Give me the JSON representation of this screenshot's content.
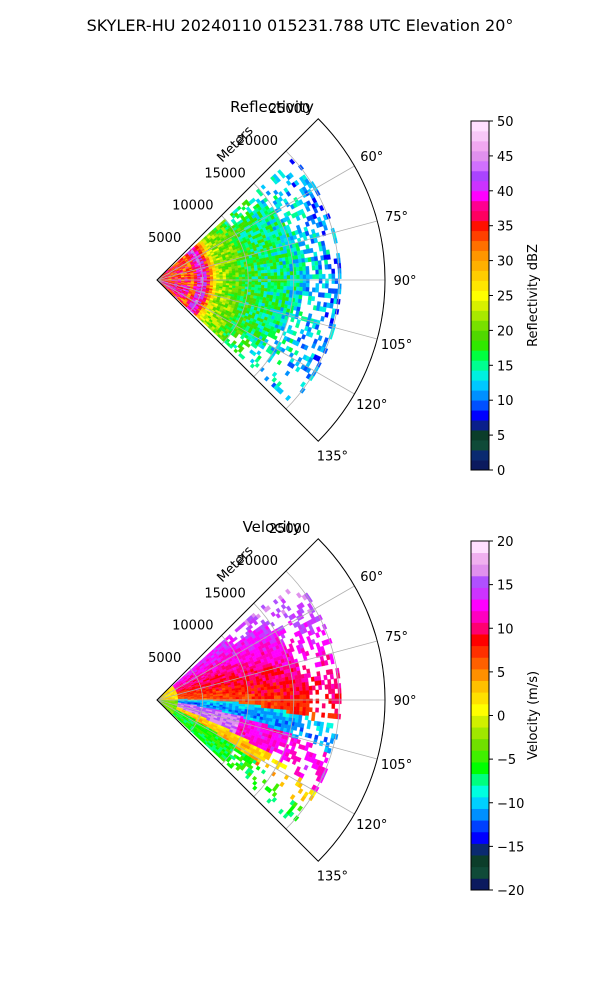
{
  "figure": {
    "suptitle": "SKYLER-HU  20240110  015231.788 UTC Elevation 20°"
  },
  "chart_data": [
    {
      "type": "heatmap",
      "projection": "polar-sector",
      "title": "Reflectivity",
      "radial_axis_label": "Meters",
      "radial_ticks": [
        5000,
        10000,
        15000,
        20000,
        25000
      ],
      "rlim": [
        0,
        25000
      ],
      "angle_ticks_deg": [
        60,
        75,
        90,
        105,
        120,
        135
      ],
      "angle_tick_labels": [
        "60°",
        "75°",
        "90°",
        "105°",
        "120°",
        "135°"
      ],
      "theta_range_deg": [
        45,
        135
      ],
      "grid": true,
      "colorbar": {
        "label": "Reflectivity dBZ",
        "range": [
          0,
          50
        ],
        "ticks": [
          0,
          5,
          10,
          15,
          20,
          25,
          30,
          35,
          40,
          45,
          50
        ],
        "tick_labels": [
          "0",
          "5",
          "10",
          "15",
          "20",
          "25",
          "30",
          "35",
          "40",
          "45",
          "50"
        ],
        "colors": [
          "#0b1a5e",
          "#0a2a70",
          "#0f4a38",
          "#0b3d2a",
          "#0a1f8a",
          "#0000ff",
          "#0050ff",
          "#0090ff",
          "#00c8ff",
          "#00f0e0",
          "#00ff90",
          "#00ff40",
          "#30e800",
          "#50d800",
          "#78e000",
          "#a8e800",
          "#d8f000",
          "#ffff00",
          "#ffe600",
          "#ffcc00",
          "#ffb000",
          "#ff9600",
          "#ff7000",
          "#ff4000",
          "#ff1000",
          "#ff0060",
          "#ff0090",
          "#ff00ff",
          "#cc33ff",
          "#aa44ff",
          "#d070ff",
          "#e090ee",
          "#f0a8f0",
          "#f8c8f8",
          "#ffe0ff"
        ]
      },
      "data_extent_m": [
        0,
        20000
      ],
      "data_theta_deg": [
        48,
        132
      ],
      "field_summary": "Near-range (0-8 km) 25-45 dBZ with a ring of 35-45 dBZ near 5 km; decreasing to 10-25 dBZ beyond 10 km"
    },
    {
      "type": "heatmap",
      "projection": "polar-sector",
      "title": "Velocity",
      "radial_axis_label": "Meters",
      "radial_ticks": [
        5000,
        10000,
        15000,
        20000,
        25000
      ],
      "rlim": [
        0,
        25000
      ],
      "angle_ticks_deg": [
        60,
        75,
        90,
        105,
        120,
        135
      ],
      "angle_tick_labels": [
        "60°",
        "75°",
        "90°",
        "105°",
        "120°",
        "135°"
      ],
      "theta_range_deg": [
        45,
        135
      ],
      "grid": true,
      "colorbar": {
        "label": "Velocity (m/s)",
        "range": [
          -20,
          20
        ],
        "ticks": [
          -20,
          -15,
          -10,
          -5,
          0,
          5,
          10,
          15,
          20
        ],
        "tick_labels": [
          "−20",
          "−15",
          "−10",
          "−5",
          "0",
          "5",
          "10",
          "15",
          "20"
        ],
        "colors": [
          "#0b1a5e",
          "#0f4a38",
          "#0b3d2a",
          "#0a2a70",
          "#0000ff",
          "#0040ff",
          "#0090ff",
          "#00d0ff",
          "#00ffe0",
          "#00ff80",
          "#00ff00",
          "#40f000",
          "#70e000",
          "#a0e800",
          "#d0f000",
          "#ffff00",
          "#ffe000",
          "#ffc000",
          "#ff9000",
          "#ff6000",
          "#ff3000",
          "#ff0000",
          "#ff0070",
          "#ff00c0",
          "#ff00ff",
          "#cc33ff",
          "#b050ff",
          "#e090ee",
          "#f0b0f0",
          "#ffe0ff"
        ]
      },
      "data_extent_m": [
        0,
        20000
      ],
      "data_theta_deg": [
        48,
        132
      ],
      "field_summary": "Positive (0 to +10 m/s) in upper sector, negative (-5 to -12 m/s) band near 90°, strong positive (+10 to +18 m/s) band near 100-110° at 5-15 km"
    }
  ]
}
